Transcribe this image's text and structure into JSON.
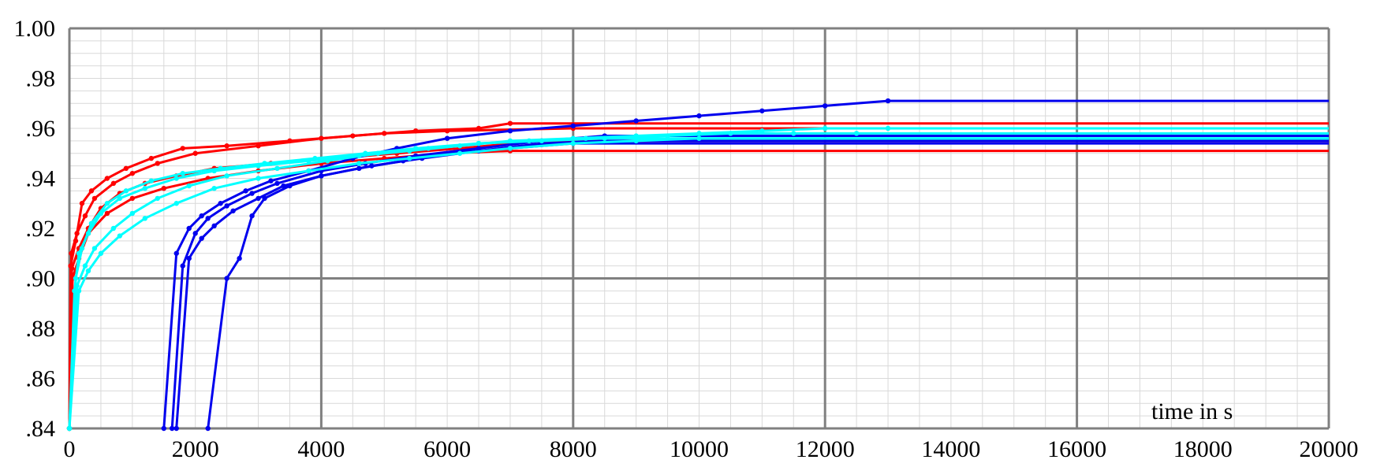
{
  "chart_data": {
    "type": "line",
    "title": "",
    "xlabel": "time in s",
    "ylabel": "",
    "xlim": [
      0,
      20000
    ],
    "ylim": [
      0.84,
      1.0
    ],
    "x_ticks": [
      0,
      2000,
      4000,
      6000,
      8000,
      10000,
      12000,
      14000,
      16000,
      18000,
      20000
    ],
    "x_tick_labels": [
      "0",
      "2000",
      "4000",
      "6000",
      "8000",
      "10000",
      "12000",
      "14000",
      "16000",
      "18000",
      "20000"
    ],
    "y_ticks": [
      0.84,
      0.86,
      0.88,
      0.9,
      0.92,
      0.94,
      0.96,
      0.98,
      1.0
    ],
    "y_tick_labels": [
      ".84",
      ".86",
      ".88",
      ".90",
      ".92",
      ".94",
      ".96",
      ".98",
      "1.00"
    ],
    "major_x_grid": [
      0,
      4000,
      8000,
      12000,
      16000,
      20000
    ],
    "major_y_grid": [
      0.84,
      0.9,
      1.0
    ],
    "grid": true,
    "legend": "none",
    "colors": {
      "red": "#ff0000",
      "blue": "#0000ee",
      "cyan": "#00ffff",
      "major_grid": "#808080",
      "minor_grid": "#d9d9d9"
    },
    "series": [
      {
        "color": "red",
        "x": [
          0,
          20,
          100,
          200,
          350,
          600,
          900,
          1300,
          1800,
          2500,
          3500,
          4500,
          5500,
          6500,
          7000,
          20000
        ],
        "y": [
          0.84,
          0.905,
          0.915,
          0.93,
          0.935,
          0.94,
          0.944,
          0.948,
          0.952,
          0.953,
          0.955,
          0.957,
          0.959,
          0.96,
          0.962,
          0.962
        ]
      },
      {
        "color": "red",
        "x": [
          0,
          30,
          120,
          250,
          400,
          700,
          1000,
          1400,
          2000,
          3000,
          4000,
          5000,
          6000,
          8000,
          20000
        ],
        "y": [
          0.84,
          0.91,
          0.918,
          0.925,
          0.932,
          0.938,
          0.942,
          0.946,
          0.95,
          0.953,
          0.956,
          0.958,
          0.959,
          0.96,
          0.96
        ]
      },
      {
        "color": "red",
        "x": [
          0,
          40,
          150,
          300,
          500,
          800,
          1200,
          1700,
          2300,
          3200,
          4200,
          5200,
          6200,
          7500,
          20000
        ],
        "y": [
          0.84,
          0.904,
          0.912,
          0.92,
          0.928,
          0.934,
          0.938,
          0.941,
          0.944,
          0.946,
          0.948,
          0.95,
          0.952,
          0.955,
          0.955
        ]
      },
      {
        "color": "red",
        "x": [
          0,
          50,
          150,
          300,
          600,
          1000,
          1500,
          2200,
          3000,
          4000,
          5000,
          6000,
          7000,
          20000
        ],
        "y": [
          0.84,
          0.9,
          0.908,
          0.918,
          0.926,
          0.932,
          0.936,
          0.94,
          0.943,
          0.946,
          0.948,
          0.95,
          0.951,
          0.951
        ]
      },
      {
        "color": "blue",
        "x": [
          1500,
          1700,
          1900,
          2100,
          2400,
          2800,
          3200,
          3800,
          4500,
          5200,
          6000,
          7000,
          8000,
          9000,
          10000,
          11000,
          12000,
          13000,
          20000
        ],
        "y": [
          0.84,
          0.91,
          0.92,
          0.925,
          0.93,
          0.935,
          0.939,
          0.943,
          0.948,
          0.952,
          0.956,
          0.959,
          0.961,
          0.963,
          0.965,
          0.967,
          0.969,
          0.971,
          0.971
        ]
      },
      {
        "color": "blue",
        "x": [
          1630,
          1800,
          2000,
          2200,
          2500,
          2900,
          3300,
          4000,
          4700,
          5500,
          6500,
          7500,
          8500,
          20000
        ],
        "y": [
          0.84,
          0.905,
          0.918,
          0.924,
          0.929,
          0.934,
          0.938,
          0.943,
          0.946,
          0.949,
          0.952,
          0.955,
          0.957,
          0.957
        ]
      },
      {
        "color": "blue",
        "x": [
          1700,
          1900,
          2100,
          2300,
          2600,
          3000,
          3400,
          4000,
          4800,
          5600,
          6500,
          7500,
          8500,
          20000
        ],
        "y": [
          0.84,
          0.908,
          0.916,
          0.921,
          0.927,
          0.932,
          0.937,
          0.941,
          0.945,
          0.948,
          0.951,
          0.954,
          0.955,
          0.955
        ]
      },
      {
        "color": "blue",
        "x": [
          2200,
          2500,
          2700,
          2900,
          3100,
          3500,
          4000,
          4600,
          5300,
          6000,
          7000,
          8000,
          20000
        ],
        "y": [
          0.84,
          0.9,
          0.908,
          0.925,
          0.932,
          0.937,
          0.941,
          0.944,
          0.947,
          0.95,
          0.952,
          0.954,
          0.954
        ]
      },
      {
        "color": "cyan",
        "x": [
          0,
          80,
          150,
          300,
          500,
          800,
          1200,
          1700,
          2300,
          3000,
          3800,
          4600,
          5400,
          6200,
          7000,
          8000,
          9000,
          10000,
          11000,
          12000,
          13000,
          20000
        ],
        "y": [
          0.84,
          0.895,
          0.91,
          0.918,
          0.926,
          0.932,
          0.936,
          0.94,
          0.943,
          0.945,
          0.947,
          0.949,
          0.951,
          0.953,
          0.955,
          0.956,
          0.957,
          0.958,
          0.959,
          0.96,
          0.96,
          0.96
        ]
      },
      {
        "color": "cyan",
        "x": [
          0,
          100,
          200,
          350,
          600,
          900,
          1300,
          1800,
          2400,
          3100,
          3900,
          4700,
          5500,
          6500,
          7500,
          8500,
          9500,
          10500,
          11500,
          12500,
          20000
        ],
        "y": [
          0.84,
          0.9,
          0.912,
          0.922,
          0.93,
          0.935,
          0.939,
          0.942,
          0.944,
          0.946,
          0.948,
          0.95,
          0.952,
          0.954,
          0.955,
          0.956,
          0.957,
          0.958,
          0.958,
          0.958,
          0.958
        ]
      },
      {
        "color": "cyan",
        "x": [
          0,
          120,
          250,
          400,
          700,
          1000,
          1400,
          1900,
          2500,
          3300,
          4100,
          4900,
          5700,
          6500,
          7300,
          8200,
          20000
        ],
        "y": [
          0.84,
          0.897,
          0.905,
          0.912,
          0.92,
          0.926,
          0.932,
          0.937,
          0.941,
          0.944,
          0.947,
          0.95,
          0.952,
          0.954,
          0.955,
          0.956,
          0.956
        ]
      },
      {
        "color": "cyan",
        "x": [
          0,
          150,
          300,
          500,
          800,
          1200,
          1700,
          2300,
          3000,
          3800,
          4600,
          5400,
          6200,
          7000,
          8000,
          9000,
          10000,
          20000
        ],
        "y": [
          0.84,
          0.895,
          0.903,
          0.91,
          0.917,
          0.924,
          0.93,
          0.936,
          0.94,
          0.943,
          0.946,
          0.948,
          0.95,
          0.952,
          0.954,
          0.955,
          0.956,
          0.956
        ]
      }
    ]
  }
}
